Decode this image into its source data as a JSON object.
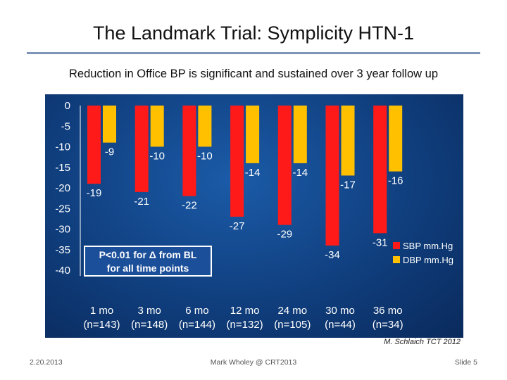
{
  "slide": {
    "title": "The Landmark Trial: Symplicity HTN-1",
    "subtitle": "Reduction in Office BP is significant and sustained over 3 year follow up",
    "citation": "M. Schlaich TCT 2012",
    "footer_date": "2.20.2013",
    "footer_center": "Mark Wholey @ CRT2013",
    "footer_slide": "Slide 5"
  },
  "annotation": {
    "line1": "P<0.01  for Δ  from BL",
    "line2": "for all time points"
  },
  "chart_data": {
    "type": "bar",
    "categories": [
      "1 mo",
      "3 mo",
      "6 mo",
      "12 mo",
      "24 mo",
      "30 mo",
      "36 mo"
    ],
    "category_counts": [
      "(n=143)",
      "(n=148)",
      "(n=144)",
      "(n=132)",
      "(n=105)",
      "(n=44)",
      "(n=34)"
    ],
    "series": [
      {
        "name": "SBP mm.Hg",
        "color": "#ff1a1a",
        "values": [
          -19,
          -21,
          -22,
          -27,
          -29,
          -34,
          -31
        ]
      },
      {
        "name": "DBP mm.Hg",
        "color": "#ffc000",
        "values": [
          -9,
          -10,
          -10,
          -14,
          -14,
          -17,
          -16
        ]
      }
    ],
    "y_ticks": [
      "0",
      "-5",
      "-10",
      "-15",
      "-20",
      "-25",
      "-30",
      "-35",
      "-40"
    ],
    "ylim": [
      -40,
      0
    ],
    "legend_position": "right",
    "grid": false,
    "title": "",
    "xlabel": "",
    "ylabel": ""
  }
}
